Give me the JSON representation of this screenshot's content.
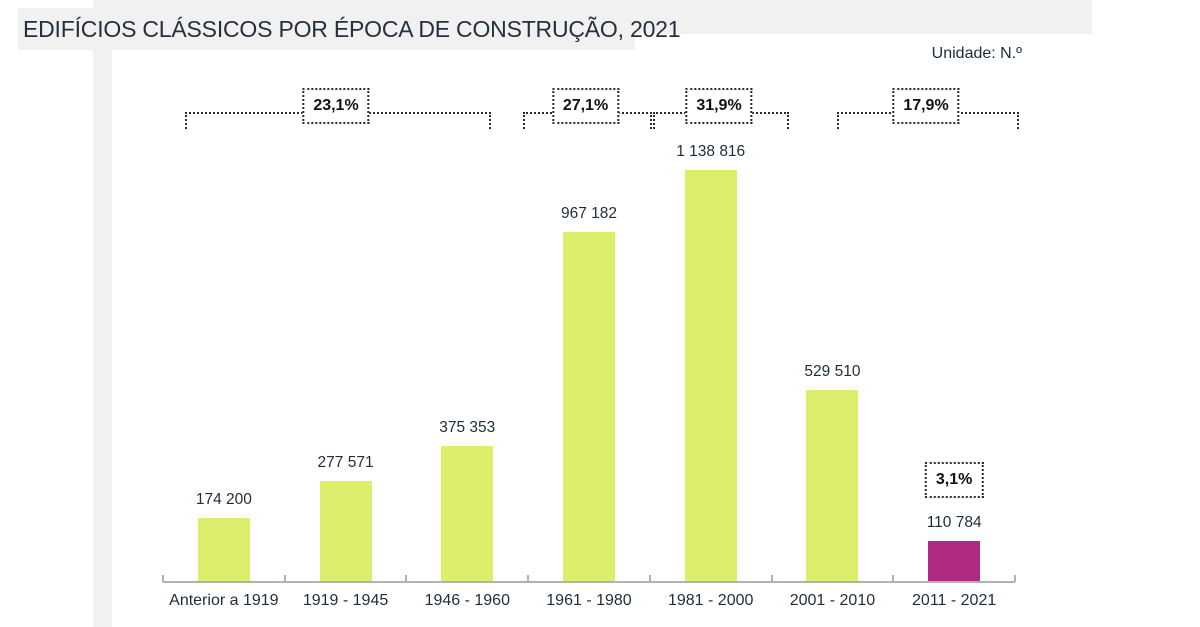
{
  "page": {
    "title": "EDIFÍCIOS CLÁSSICOS POR ÉPOCA DE CONSTRUÇÃO, 2021",
    "unit_label": "Unidade: N.º"
  },
  "colors": {
    "bar_default": "#dcee6b",
    "bar_highlight": "#b02a82",
    "band_background": "#f1f1f2",
    "axis": "#b0b3b5",
    "text": "#1f2d3a"
  },
  "chart_data": {
    "type": "bar",
    "title": "EDIFÍCIOS CLÁSSICOS POR ÉPOCA DE CONSTRUÇÃO, 2021",
    "unit": "N.º",
    "categories": [
      "Anterior a 1919",
      "1919 - 1945",
      "1946 - 1960",
      "1961 - 1980",
      "1981 - 2000",
      "2001 - 2010",
      "2011 - 2021"
    ],
    "values": [
      174200,
      277571,
      375353,
      967182,
      1138816,
      529510,
      110784
    ],
    "value_labels": [
      "174 200",
      "277 571",
      "375 353",
      "967 182",
      "1 138 816",
      "529 510",
      "110 784"
    ],
    "bar_colors": [
      "#dcee6b",
      "#dcee6b",
      "#dcee6b",
      "#dcee6b",
      "#dcee6b",
      "#dcee6b",
      "#b02a82"
    ],
    "ylim": [
      0,
      1200000
    ],
    "grid": false,
    "legend": null,
    "percent_brackets": [
      {
        "label": "23,1%",
        "from_category": 0,
        "to_category": 2
      },
      {
        "label": "27,1%",
        "from_category": 3,
        "to_category": 3
      },
      {
        "label": "31,9%",
        "from_category": 4,
        "to_category": 4
      },
      {
        "label": "17,9%",
        "from_category": 5,
        "to_category": 6
      }
    ],
    "highlight_annotation": {
      "label": "3,1%",
      "category": 6
    }
  }
}
